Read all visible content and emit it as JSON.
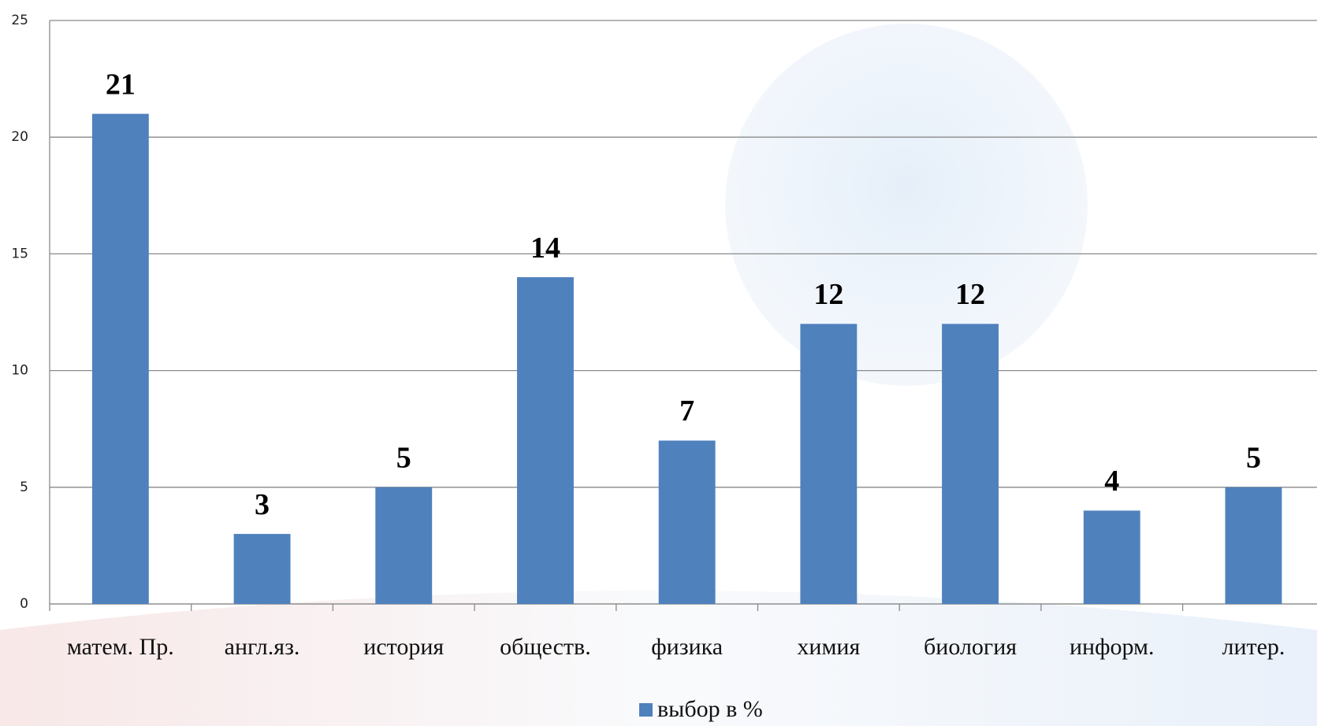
{
  "chart_data": {
    "type": "bar",
    "categories": [
      "матем. Пр.",
      "англ.яз.",
      "история",
      "обществ.",
      "физика",
      "химия",
      "биология",
      "информ.",
      "литер."
    ],
    "series": [
      {
        "name": "выбор в %",
        "color": "#4f81bd",
        "values": [
          21,
          3,
          5,
          14,
          7,
          12,
          12,
          4,
          5
        ]
      }
    ],
    "ylim": [
      0,
      25
    ],
    "yticks": [
      0,
      5,
      10,
      15,
      20,
      25
    ],
    "grid": true,
    "legend": "bottom"
  }
}
